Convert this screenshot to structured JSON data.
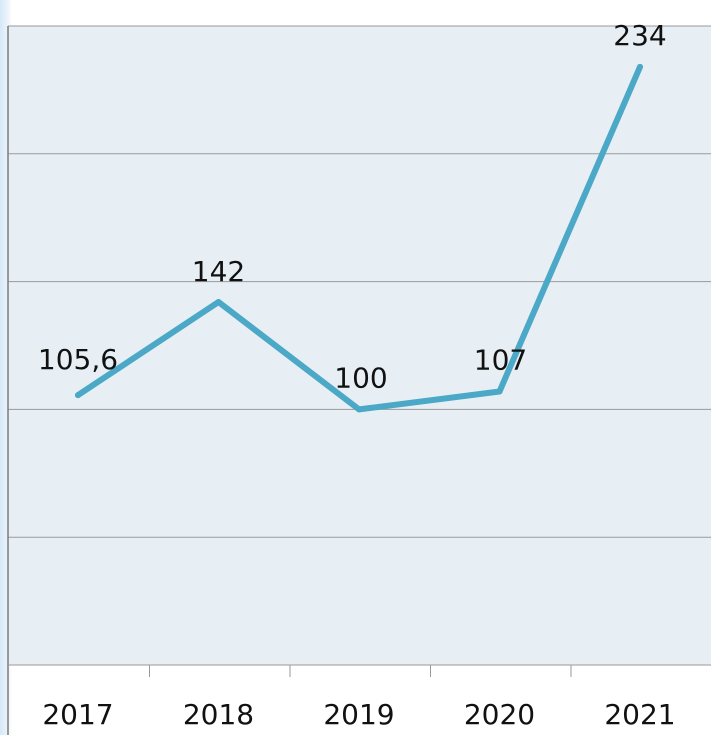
{
  "chart_data": {
    "type": "line",
    "categories": [
      "2017",
      "2018",
      "2019",
      "2020",
      "2021"
    ],
    "series": [
      {
        "values": [
          105.6,
          142,
          100,
          107,
          234
        ],
        "data_labels": [
          "105,6",
          "142",
          "100",
          "107",
          "234"
        ]
      }
    ],
    "ylim": [
      0,
      250
    ],
    "grid": true,
    "legend": "none",
    "title": "",
    "xlabel": "",
    "ylabel": "",
    "colors": {
      "line": "#4ba8c6",
      "plot_background": "#e8eff4",
      "gridline": "#9a9a9a",
      "text": "#111111"
    }
  }
}
